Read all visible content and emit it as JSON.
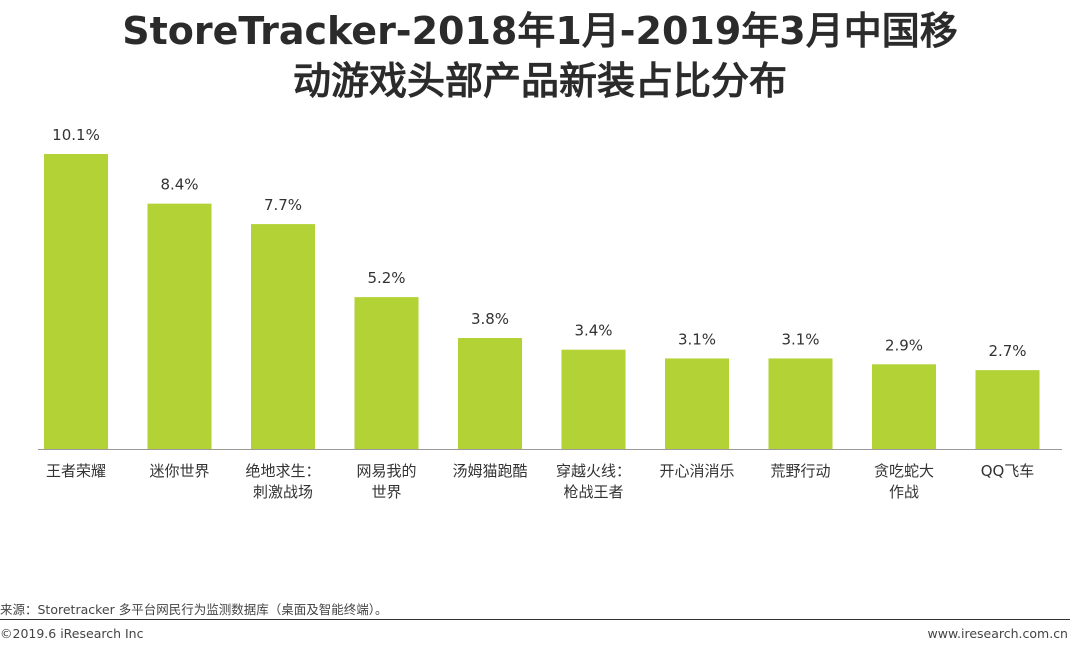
{
  "header": {
    "title_line1": "StoreTracker-2018年1月-2019年3月中国移",
    "title_line2": "动游戏头部产品新装占比分布"
  },
  "chart_data": {
    "type": "bar",
    "categories": [
      [
        "王者荣耀"
      ],
      [
        "迷你世界"
      ],
      [
        "绝地求生：",
        "刺激战场"
      ],
      [
        "网易我的",
        "世界"
      ],
      [
        "汤姆猫跑酷"
      ],
      [
        "穿越火线：",
        "枪战王者"
      ],
      [
        "开心消消乐"
      ],
      [
        "荒野行动"
      ],
      [
        "贪吃蛇大",
        "作战"
      ],
      [
        "QQ飞车"
      ]
    ],
    "values": [
      10.1,
      8.4,
      7.7,
      5.2,
      3.8,
      3.4,
      3.1,
      3.1,
      2.9,
      2.7
    ],
    "value_labels": [
      "10.1%",
      "8.4%",
      "7.7%",
      "5.2%",
      "3.8%",
      "3.4%",
      "3.1%",
      "3.1%",
      "2.9%",
      "2.7%"
    ],
    "ylim": [
      0,
      10.1
    ],
    "grid": false,
    "legend": "none",
    "bar_color": "#b2d235"
  },
  "footer": {
    "source": "来源：Storetracker 多平台网民行为监测数据库（桌面及智能终端）。",
    "copyright": "©2019.6 iResearch Inc",
    "website": "www.iresearch.com.cn"
  }
}
